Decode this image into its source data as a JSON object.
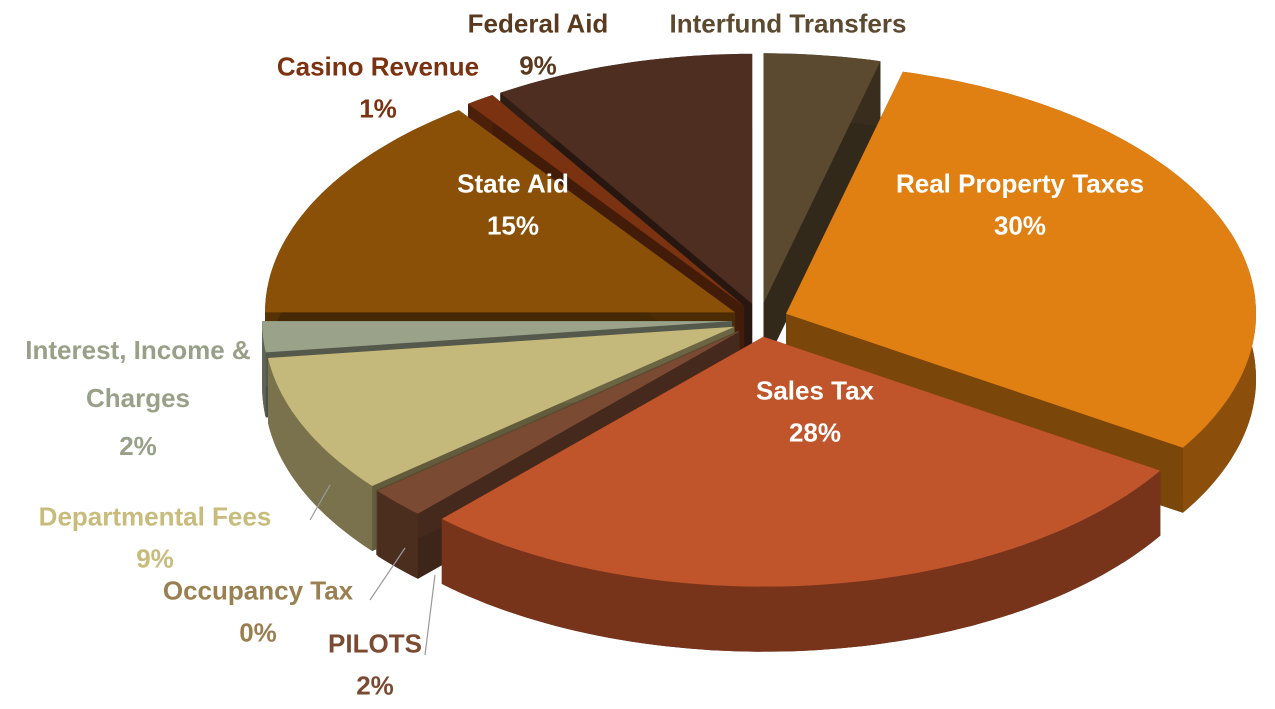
{
  "chart_data": {
    "type": "pie",
    "categories": [
      "Real Property Taxes",
      "Sales Tax",
      "PILOTS",
      "Occupancy Tax",
      "Departmental Fees",
      "Interest, Income & Charges",
      "State Aid",
      "Casino Revenue",
      "Federal Aid",
      "Interfund Transfers"
    ],
    "values": [
      30,
      28,
      2,
      0,
      9,
      2,
      15,
      1,
      9,
      4
    ],
    "value_labels": [
      "30%",
      "28%",
      "2%",
      "0%",
      "9%",
      "2%",
      "15%",
      "1%",
      "9%",
      "4%"
    ],
    "colors": [
      "#e07f12",
      "#c0542a",
      "#7b4a32",
      "#a48c5c",
      "#c4b87a",
      "#9aa28a",
      "#8a5008",
      "#7a3210",
      "#4e2e20",
      "#5c4a30"
    ],
    "label_colors": [
      "#ffffff",
      "#ffffff",
      "#7b4a32",
      "#9a8050",
      "#c8bc7c",
      "#98a088",
      "#ffffff",
      "#7a3210",
      "#5a3a1e",
      "#5c4a30"
    ]
  }
}
